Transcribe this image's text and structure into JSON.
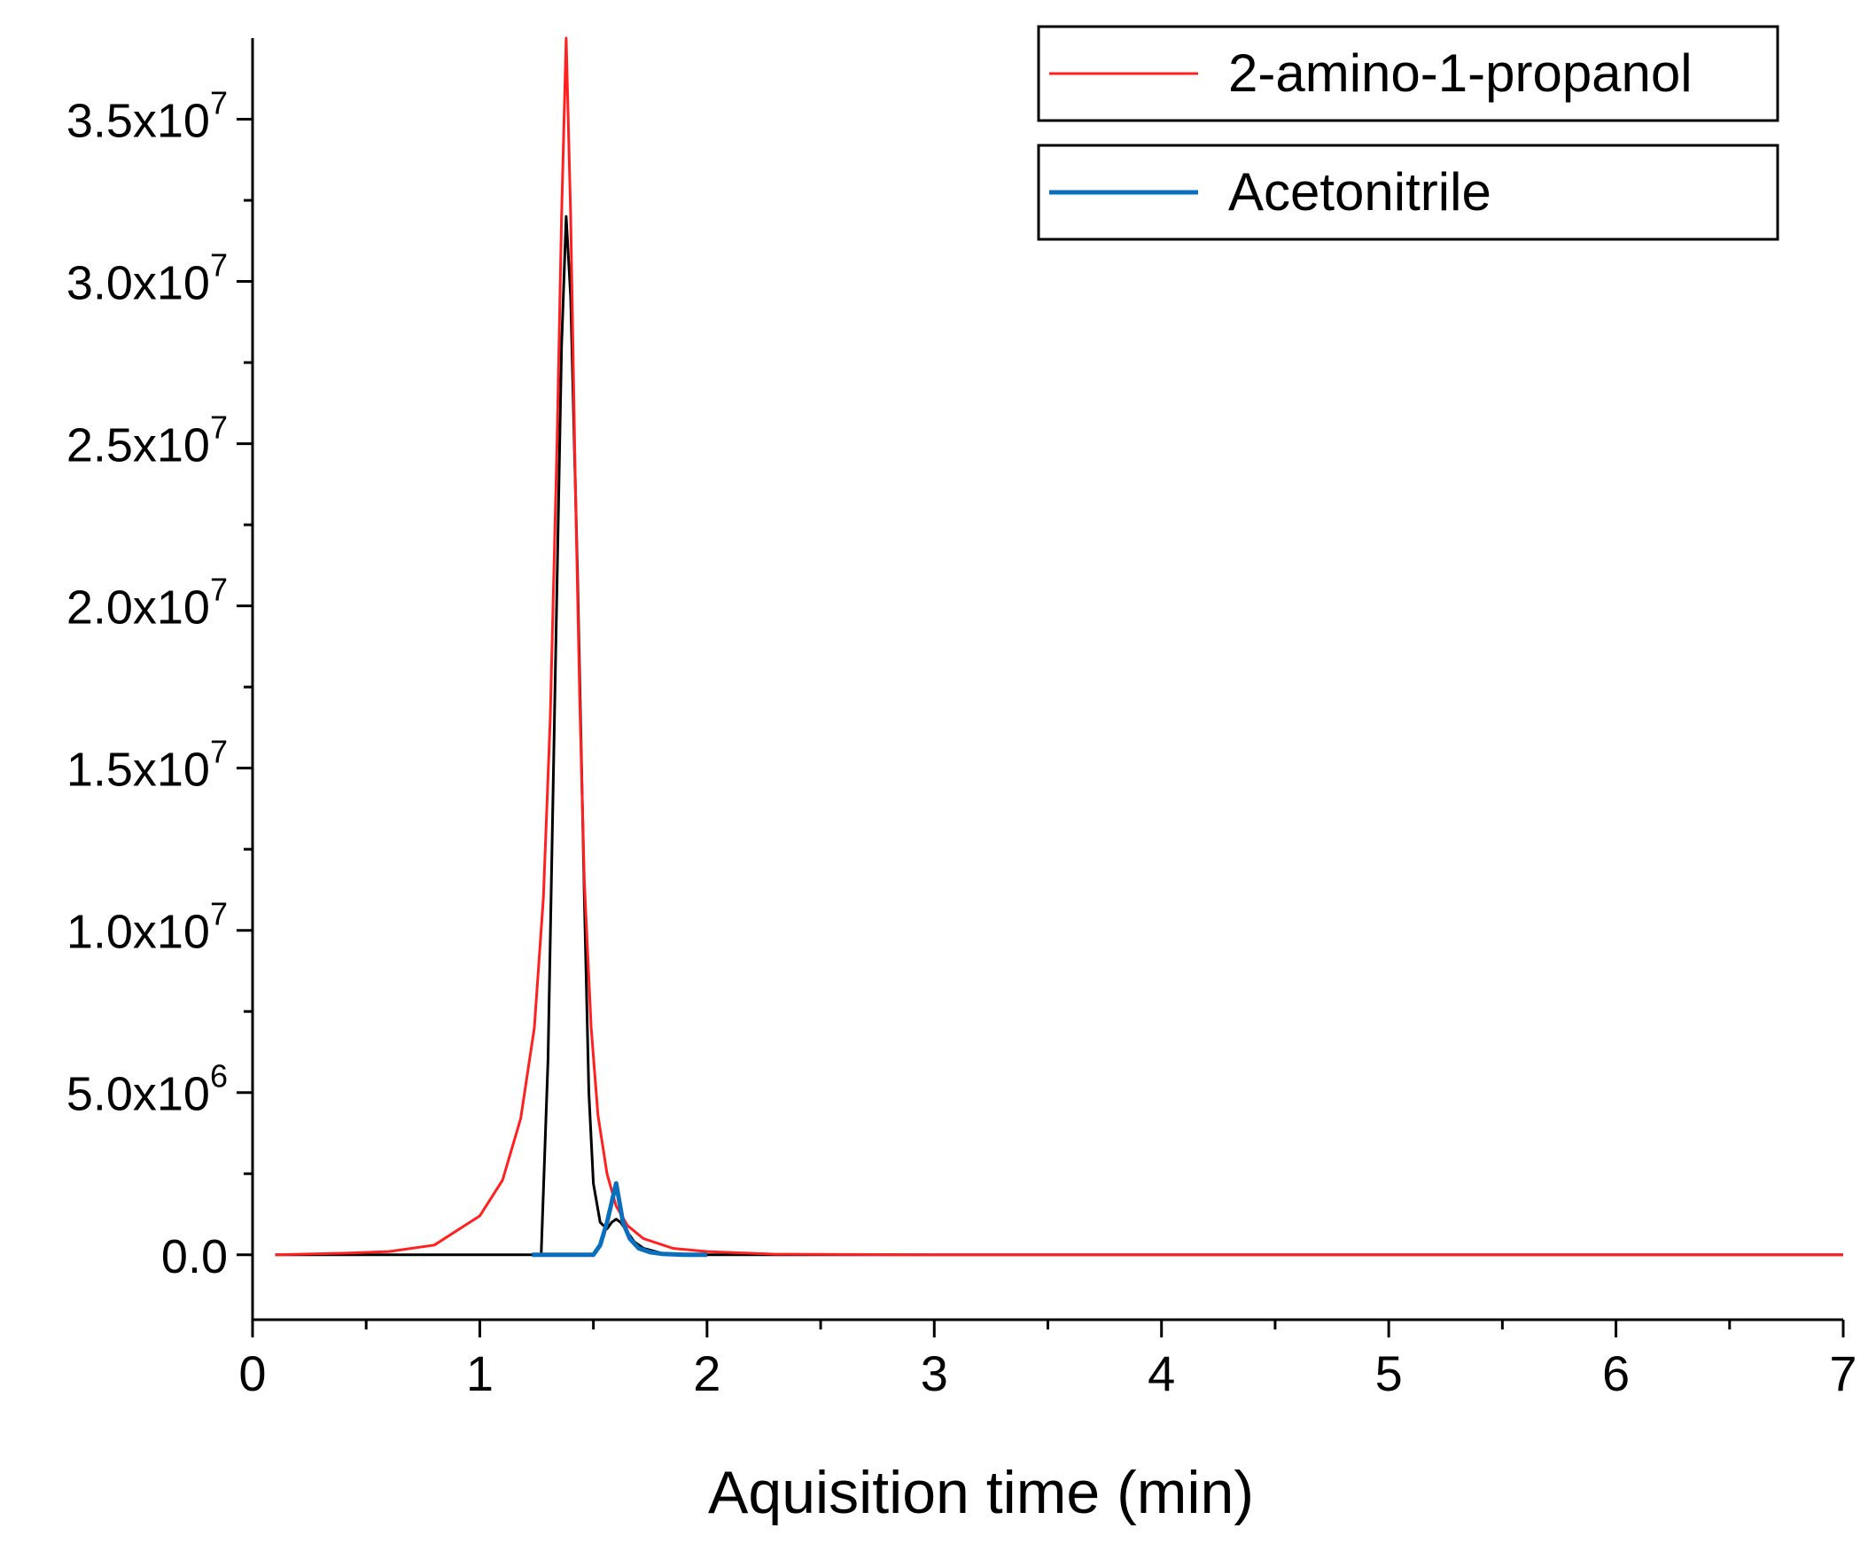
{
  "chart_data": {
    "type": "line",
    "xlabel": "Aquisition time (min)",
    "ylabel": "",
    "xlim": [
      0,
      7
    ],
    "ylim": [
      -2000000,
      37500000
    ],
    "x_ticks": [
      {
        "value": 0,
        "label": "0"
      },
      {
        "value": 1,
        "label": "1"
      },
      {
        "value": 2,
        "label": "2"
      },
      {
        "value": 3,
        "label": "3"
      },
      {
        "value": 4,
        "label": "4"
      },
      {
        "value": 5,
        "label": "5"
      },
      {
        "value": 6,
        "label": "6"
      },
      {
        "value": 7,
        "label": "7"
      }
    ],
    "x_minor_step": 0.5,
    "y_ticks": [
      {
        "value": 0,
        "mantissa": "0.0",
        "exp": ""
      },
      {
        "value": 5000000,
        "mantissa": "5.0x10",
        "exp": "6"
      },
      {
        "value": 10000000,
        "mantissa": "1.0x10",
        "exp": "7"
      },
      {
        "value": 15000000,
        "mantissa": "1.5x10",
        "exp": "7"
      },
      {
        "value": 20000000,
        "mantissa": "2.0x10",
        "exp": "7"
      },
      {
        "value": 25000000,
        "mantissa": "2.5x10",
        "exp": "7"
      },
      {
        "value": 30000000,
        "mantissa": "3.0x10",
        "exp": "7"
      },
      {
        "value": 35000000,
        "mantissa": "3.5x10",
        "exp": "7"
      }
    ],
    "y_minor_step": 2500000,
    "grid": false,
    "legend_position": "top-right",
    "series": [
      {
        "name": "",
        "color": "#000000",
        "x": [
          0.1,
          1.0,
          1.2,
          1.27,
          1.3,
          1.33,
          1.36,
          1.38,
          1.4,
          1.43,
          1.46,
          1.48,
          1.5,
          1.53,
          1.56,
          1.58,
          1.6,
          1.62,
          1.65,
          1.68,
          1.72,
          1.8,
          2.0,
          3.0,
          5.0,
          7.0
        ],
        "y": [
          0,
          0,
          0,
          0,
          6000000,
          17000000,
          28000000,
          32000000,
          29500000,
          21000000,
          11000000,
          5000000,
          2200000,
          1000000,
          800000,
          1000000,
          1100000,
          1000000,
          700000,
          400000,
          200000,
          50000,
          0,
          0,
          0,
          0
        ]
      },
      {
        "name": "2-amino-1-propanol",
        "color": "#ff2020",
        "x": [
          0.1,
          0.4,
          0.6,
          0.8,
          1.0,
          1.1,
          1.18,
          1.24,
          1.28,
          1.31,
          1.34,
          1.36,
          1.38,
          1.4,
          1.42,
          1.44,
          1.46,
          1.49,
          1.52,
          1.56,
          1.6,
          1.65,
          1.72,
          1.85,
          2.0,
          2.3,
          3.0,
          5.0,
          7.0
        ],
        "y": [
          0,
          50000,
          100000,
          300000,
          1200000,
          2300000,
          4200000,
          7000000,
          11000000,
          16500000,
          25000000,
          32000000,
          37500000,
          32000000,
          24000000,
          17000000,
          11500000,
          7000000,
          4300000,
          2500000,
          1500000,
          900000,
          500000,
          200000,
          100000,
          20000,
          0,
          0,
          0
        ]
      },
      {
        "name": "Acetonitrile",
        "color": "#0a6fbd",
        "x": [
          1.23,
          1.4,
          1.5,
          1.53,
          1.56,
          1.59,
          1.6,
          1.61,
          1.63,
          1.66,
          1.7,
          1.75,
          1.8,
          1.9,
          2.0
        ],
        "y": [
          0,
          0,
          0,
          300000,
          1000000,
          1900000,
          2200000,
          1800000,
          1000000,
          500000,
          200000,
          80000,
          30000,
          0,
          0
        ]
      }
    ]
  }
}
